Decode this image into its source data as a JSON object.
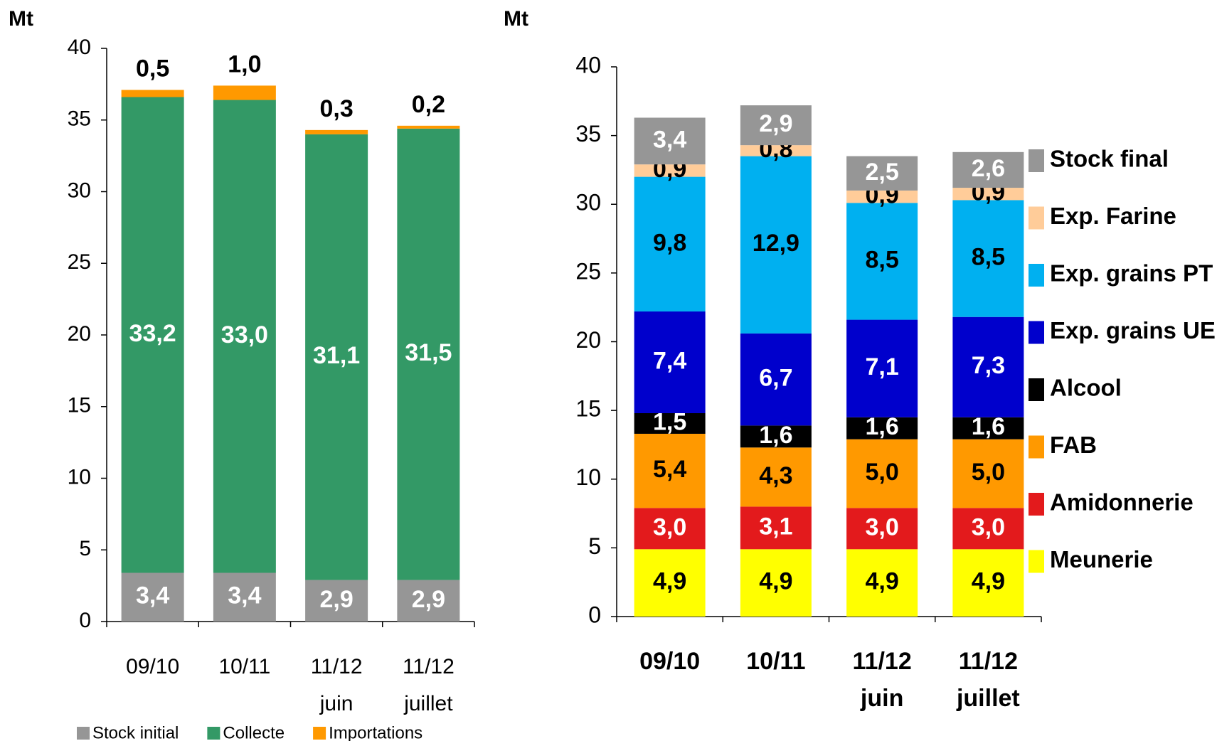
{
  "chart_data": [
    {
      "type": "bar",
      "stacked": true,
      "y_label": "Mt",
      "legend": "bottom",
      "categories": [
        [
          "09/10"
        ],
        [
          "10/11"
        ],
        [
          "11/12",
          "juin"
        ],
        [
          "11/12",
          "juillet"
        ]
      ],
      "ylim": [
        0,
        40
      ],
      "yticks": [
        0,
        5,
        10,
        15,
        20,
        25,
        30,
        35,
        40
      ],
      "series": [
        {
          "name": "Stock initial",
          "color": "#969696",
          "label_color": "#ffffff",
          "values": [
            3.4,
            3.4,
            2.9,
            2.9
          ],
          "value_labels": [
            "3,4",
            "3,4",
            "2,9",
            "2,9"
          ]
        },
        {
          "name": "Collecte",
          "color": "#339966",
          "label_color": "#ffffff",
          "values": [
            33.2,
            33.0,
            31.1,
            31.5
          ],
          "value_labels": [
            "33,2",
            "33,0",
            "31,1",
            "31,5"
          ]
        },
        {
          "name": "Importations",
          "color": "#ff9900",
          "label_color": "#000000",
          "values": [
            0.5,
            1.0,
            0.3,
            0.2
          ],
          "value_labels": [
            "0,5",
            "1,0",
            "0,3",
            "0,2"
          ]
        }
      ]
    },
    {
      "type": "bar",
      "stacked": true,
      "y_label": "Mt",
      "legend": "right",
      "categories": [
        [
          "09/10"
        ],
        [
          "10/11"
        ],
        [
          "11/12",
          "juin"
        ],
        [
          "11/12",
          "juillet"
        ]
      ],
      "ylim": [
        0,
        40
      ],
      "yticks": [
        0,
        5,
        10,
        15,
        20,
        25,
        30,
        35,
        40
      ],
      "series": [
        {
          "name": "Meunerie",
          "color": "#ffff00",
          "label_color": "#000000",
          "values": [
            4.9,
            4.9,
            4.9,
            4.9
          ],
          "value_labels": [
            "4,9",
            "4,9",
            "4,9",
            "4,9"
          ]
        },
        {
          "name": "Amidonnerie",
          "color": "#e31a1c",
          "label_color": "#ffffff",
          "values": [
            3.0,
            3.1,
            3.0,
            3.0
          ],
          "value_labels": [
            "3,0",
            "3,1",
            "3,0",
            "3,0"
          ]
        },
        {
          "name": "FAB",
          "color": "#ff9900",
          "label_color": "#000000",
          "values": [
            5.4,
            4.3,
            5.0,
            5.0
          ],
          "value_labels": [
            "5,4",
            "4,3",
            "5,0",
            "5,0"
          ]
        },
        {
          "name": "Alcool",
          "color": "#000000",
          "label_color": "#ffffff",
          "values": [
            1.5,
            1.6,
            1.6,
            1.6
          ],
          "value_labels": [
            "1,5",
            "1,6",
            "1,6",
            "1,6"
          ]
        },
        {
          "name": "Exp. grains UE",
          "color": "#0000cc",
          "label_color": "#ffffff",
          "values": [
            7.4,
            6.7,
            7.1,
            7.3
          ],
          "value_labels": [
            "7,4",
            "6,7",
            "7,1",
            "7,3"
          ]
        },
        {
          "name": "Exp. grains PT",
          "color": "#00b0f0",
          "label_color": "#000000",
          "values": [
            9.8,
            12.9,
            8.5,
            8.5
          ],
          "value_labels": [
            "9,8",
            "12,9",
            "8,5",
            "8,5"
          ]
        },
        {
          "name": "Exp. Farine",
          "color": "#ffcc99",
          "label_color": "#000000",
          "values": [
            0.9,
            0.8,
            0.9,
            0.9
          ],
          "value_labels": [
            "0,9",
            "0,8",
            "0,9",
            "0,9"
          ]
        },
        {
          "name": "Stock final",
          "color": "#969696",
          "label_color": "#ffffff",
          "values": [
            3.4,
            2.9,
            2.5,
            2.6
          ],
          "value_labels": [
            "3,4",
            "2,9",
            "2,5",
            "2,6"
          ]
        }
      ]
    }
  ]
}
